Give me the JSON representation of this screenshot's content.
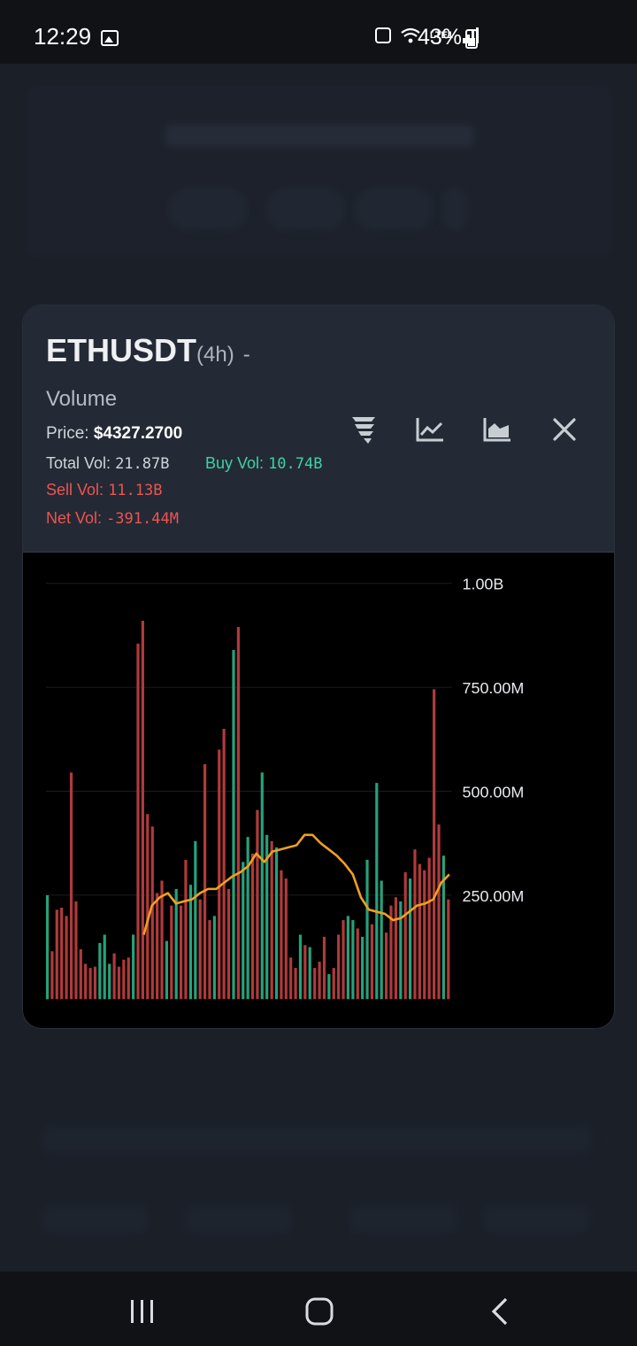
{
  "status_bar": {
    "time": "12:29",
    "network": "LTE1",
    "battery": "43%"
  },
  "modal": {
    "symbol": "ETHUSDT",
    "interval": "(4h)",
    "separator": "-",
    "subtitle": "Volume",
    "price_label": "Price:",
    "price_value": "$4327.2700",
    "total_label": "Total Vol:",
    "total_value": "21.87B",
    "buy_label": "Buy Vol:",
    "buy_value": "10.74B",
    "sell_label": "Sell Vol:",
    "sell_value": "11.13B",
    "net_label": "Net Vol:",
    "net_value": "-391.44M",
    "toolbar_icons": [
      "filter-funnel-icon",
      "line-chart-icon",
      "area-chart-icon",
      "close-icon"
    ]
  },
  "colors": {
    "buy": "#26a17b",
    "sell": "#b03a3a",
    "ma_line": "#f0a020",
    "grid": "#1c1c1c"
  },
  "chart_data": {
    "type": "bar",
    "title": "",
    "y_ticks": [
      "1.00B",
      "750.00M",
      "500.00M",
      "250.00M"
    ],
    "ylim": [
      0,
      1000000000
    ],
    "grid": true,
    "series": [
      {
        "kind": "volume",
        "values": [
          250,
          115,
          215,
          220,
          200,
          545,
          235,
          120,
          85,
          75,
          78,
          135,
          155,
          85,
          110,
          78,
          95,
          100,
          155,
          855,
          910,
          445,
          415,
          255,
          285,
          140,
          225,
          265,
          225,
          335,
          275,
          380,
          240,
          565,
          190,
          200,
          600,
          650,
          265,
          840,
          895,
          330,
          390,
          350,
          455,
          545,
          395,
          380,
          365,
          310,
          290,
          100,
          75,
          155,
          130,
          125,
          75,
          90,
          150,
          60,
          75,
          155,
          190,
          200,
          190,
          170,
          150,
          335,
          180,
          520,
          285,
          160,
          225,
          245,
          235,
          305,
          290,
          360,
          325,
          310,
          340,
          745,
          420,
          345,
          240
        ],
        "sides": [
          "b",
          "s",
          "s",
          "s",
          "s",
          "s",
          "s",
          "s",
          "s",
          "s",
          "s",
          "b",
          "b",
          "b",
          "s",
          "s",
          "s",
          "s",
          "b",
          "s",
          "s",
          "s",
          "s",
          "s",
          "s",
          "b",
          "s",
          "b",
          "s",
          "s",
          "b",
          "b",
          "s",
          "s",
          "s",
          "b",
          "s",
          "s",
          "s",
          "b",
          "s",
          "b",
          "b",
          "s",
          "s",
          "b",
          "b",
          "s",
          "b",
          "s",
          "s",
          "s",
          "s",
          "b",
          "s",
          "b",
          "s",
          "s",
          "s",
          "b",
          "s",
          "s",
          "s",
          "b",
          "b",
          "s",
          "b",
          "b",
          "s",
          "b",
          "b",
          "s",
          "s",
          "s",
          "b",
          "s",
          "b",
          "s",
          "s",
          "s",
          "s",
          "s",
          "s",
          "b",
          "s"
        ]
      },
      {
        "kind": "moving-average",
        "x_start_index": 20,
        "values": [
          155,
          225,
          245,
          255,
          230,
          235,
          240,
          255,
          265,
          265,
          280,
          295,
          305,
          320,
          350,
          330,
          355,
          360,
          365,
          370,
          395,
          395,
          375,
          360,
          345,
          325,
          300,
          245,
          215,
          210,
          205,
          190,
          195,
          210,
          225,
          230,
          240,
          280,
          300
        ]
      }
    ]
  }
}
